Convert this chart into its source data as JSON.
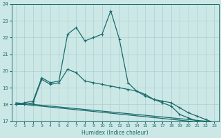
{
  "xlabel": "Humidex (Indice chaleur)",
  "bg_color": "#cce8e6",
  "line_color": "#1a6b6b",
  "grid_color": "#aacfcd",
  "lines": [
    {
      "x": [
        0,
        1,
        2,
        3,
        4,
        5,
        6,
        7,
        8,
        9,
        10,
        11,
        12,
        13,
        14,
        15,
        16,
        17,
        18,
        19,
        20,
        21,
        22,
        23
      ],
      "y": [
        18.0,
        18.1,
        18.2,
        19.6,
        19.3,
        19.4,
        22.2,
        22.6,
        21.8,
        22.0,
        22.2,
        23.6,
        21.9,
        19.3,
        18.8,
        18.5,
        18.3,
        18.1,
        17.9,
        17.4,
        17.2,
        17.0,
        16.9,
        null
      ],
      "marker": true
    },
    {
      "x": [
        0,
        1,
        2,
        3,
        4,
        5,
        6,
        7,
        8,
        9,
        10,
        11,
        12,
        13,
        14,
        15,
        16,
        17,
        18,
        19,
        20,
        21,
        22,
        23
      ],
      "y": [
        18.0,
        18.0,
        18.1,
        19.5,
        19.2,
        19.3,
        20.1,
        19.9,
        19.4,
        19.3,
        19.2,
        19.1,
        19.0,
        18.9,
        18.8,
        18.6,
        18.3,
        18.2,
        18.1,
        17.8,
        17.5,
        17.3,
        17.1,
        16.9
      ],
      "marker": true
    },
    {
      "x": [
        0,
        23
      ],
      "y": [
        18.05,
        16.85
      ],
      "marker": false
    },
    {
      "x": [
        0,
        23
      ],
      "y": [
        18.1,
        16.95
      ],
      "marker": false
    }
  ],
  "xlim": [
    -0.5,
    23.5
  ],
  "ylim": [
    17,
    24
  ],
  "yticks": [
    17,
    18,
    19,
    20,
    21,
    22,
    23,
    24
  ],
  "xticks": [
    0,
    1,
    2,
    3,
    4,
    5,
    6,
    7,
    8,
    9,
    10,
    11,
    12,
    13,
    14,
    15,
    16,
    17,
    18,
    19,
    20,
    21,
    22,
    23
  ]
}
